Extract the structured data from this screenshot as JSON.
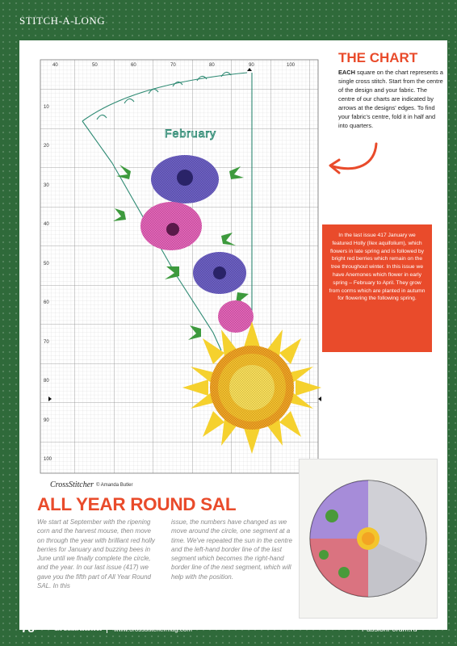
{
  "header": {
    "section_label": "STITCH-A-LONG"
  },
  "chart": {
    "x_ticks": [
      "40",
      "50",
      "60",
      "70",
      "80",
      "90",
      "100"
    ],
    "y_ticks": [
      "10",
      "20",
      "30",
      "40",
      "50",
      "60",
      "70",
      "80",
      "90",
      "100"
    ],
    "month_label": "February",
    "brand": "CrossStitcher",
    "credit": "© Amanda Butler"
  },
  "the_chart": {
    "title": "THE CHART",
    "lead": "EACH",
    "body": "square on the chart represents a single cross stitch. Start from the centre of the design and your fabric. The centre of our charts are indicated by arrows at the designs' edges. To find your fabric's centre, fold it in half and into quarters."
  },
  "info_box": {
    "text": "In the last issue 417 January we featured Holly (Ilex aquifolium), which flowers in late spring and is followed by bright red berries which remain on the tree throughout winter. In this issue we have Anemones which flower in early spring – February to April. They grow from corms which are planted in autumn for flowering the following spring."
  },
  "article": {
    "headline": "ALL YEAR ROUND SAL",
    "col1": "We start at September with the ripening corn and the harvest mouse, then move on through the year with brilliant red holly berries for January and buzzing bees in June until we finally complete the circle, and the year. In our last issue (417) we gave you the fifth part of All Year Round SAL. In this",
    "col2": "issue, the numbers have changed as we move around the circle, one segment at a time. We've repeated the sun in the centre and the left-hand border line of the last segment which becomes the right-hand border line of the next segment, which will help with the position."
  },
  "footer": {
    "page_number": "78",
    "brand": "CrossStitcher",
    "url": "www.crossstitchermag.com",
    "watermark": "PassionForum.ru"
  },
  "colors": {
    "accent": "#e94b2b",
    "background": "#2f6a3a",
    "anemone_purple": "#6c5fc4",
    "anemone_pink": "#e463b8",
    "sun_yellow": "#f3c52c",
    "leaf_green": "#3d9a3d"
  }
}
